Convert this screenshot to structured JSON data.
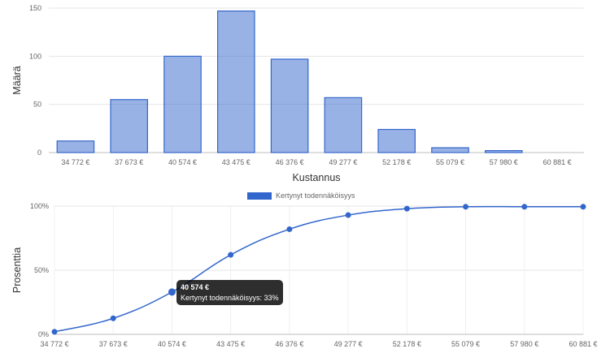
{
  "chart_data": [
    {
      "type": "bar",
      "categories": [
        "34 772 €",
        "37 673 €",
        "40 574 €",
        "43 475 €",
        "46 376 €",
        "49 277 €",
        "52 178 €",
        "55 079 €",
        "57 980 €",
        "60 881 €"
      ],
      "values": [
        12,
        55,
        100,
        147,
        97,
        57,
        24,
        5,
        2,
        0
      ],
      "xlabel": "Kustannus",
      "ylabel": "Määrä",
      "ylim": [
        0,
        150
      ],
      "yticks": [
        "0",
        "50",
        "100",
        "150"
      ],
      "grid": true,
      "color": "#3366cc"
    },
    {
      "type": "line",
      "x": [
        "34 772 €",
        "37 673 €",
        "40 574 €",
        "43 475 €",
        "46 376 €",
        "49 277 €",
        "52 178 €",
        "55 079 €",
        "57 980 €",
        "60 881 €"
      ],
      "series": [
        {
          "name": "Kertynyt todennäköisyys",
          "values": [
            2,
            12.5,
            33,
            62,
            82,
            93,
            98,
            99.5,
            99.5,
            99.5
          ]
        }
      ],
      "ylabel": "Prosenttia",
      "ylim": [
        0,
        100
      ],
      "yticks": [
        "0%",
        "50%",
        "100%"
      ],
      "legend": "top-center",
      "grid": true,
      "color": "#3366cc",
      "tooltip": {
        "title": "40 574 €",
        "body": "Kertynyt todennäköisyys: 33%"
      }
    }
  ]
}
